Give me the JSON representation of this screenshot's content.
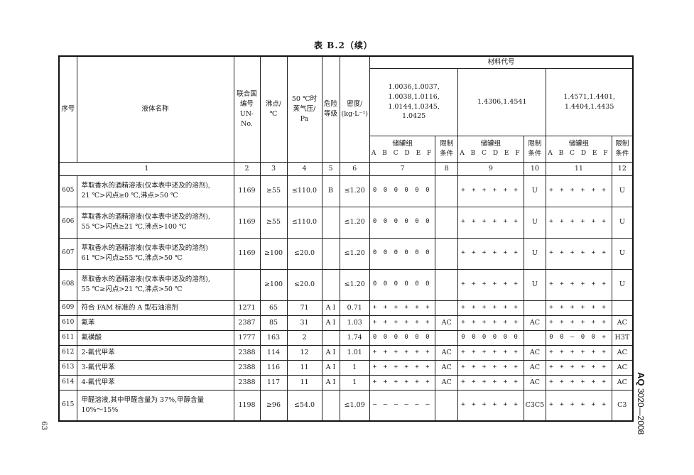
{
  "caption": "表 B.2（续）",
  "header": {
    "seq": "序号",
    "name": "液体名称",
    "un": [
      "联合国",
      "编号",
      "UN-No."
    ],
    "boiling": [
      "沸点/",
      "℃"
    ],
    "vapor": [
      "50 ℃时",
      "蒸气压/",
      "Pa"
    ],
    "hazard": [
      "危险",
      "等级"
    ],
    "density": [
      "密度/",
      "(kg·L⁻¹)"
    ],
    "materials": "材料代号",
    "material_groups": [
      [
        "1.0036,1.0037,",
        "1.0038,1.0116,",
        "1.0144,1.0345,",
        "1.0425"
      ],
      [
        "1.4306,1.4541"
      ],
      [
        "1.4571,1.4401,",
        "1.4404,1.4435"
      ]
    ],
    "tank_group": "储罐组",
    "tank_letters": "A B C D E F",
    "restriction": [
      "限制",
      "条件"
    ],
    "col_numbers": [
      "1",
      "2",
      "3",
      "4",
      "5",
      "6",
      "7",
      "8",
      "9",
      "10",
      "11",
      "12"
    ]
  },
  "rows": [
    {
      "seq": "605",
      "name": [
        "萃取香水的酒精溶液(仅本表中述及的溶剂),",
        "21 ℃>闪点≥0 ℃,沸点>50 ℃"
      ],
      "un": "1169",
      "bp": "≥55",
      "vp": "≤110.0",
      "hz": "B",
      "den": "≤1.20",
      "g1": "0 0 0 0 0 0",
      "r1": "",
      "g2": "+ + + + + +",
      "r2": "U",
      "g3": "+ + + + + +",
      "r3": "U"
    },
    {
      "seq": "606",
      "name": [
        "萃取香水的酒精溶液(仅本表中述及的溶剂),",
        "55 ℃>闪点≥21 ℃,沸点>100 ℃"
      ],
      "un": "1169",
      "bp": "≥55",
      "vp": "≤110.0",
      "hz": "",
      "den": "≤1.20",
      "g1": "0 0 0 0 0 0",
      "r1": "",
      "g2": "+ + + + + +",
      "r2": "U",
      "g3": "+ + + + + +",
      "r3": "U"
    },
    {
      "seq": "607",
      "name": [
        "萃取香水的酒精溶液(仅本表中述及的溶剂)",
        "61 ℃>闪点≥55 ℃,沸点>50 ℃"
      ],
      "un": "1169",
      "bp": "≥100",
      "vp": "≤20.0",
      "hz": "",
      "den": "≤1.20",
      "g1": "0 0 0 0 0 0",
      "r1": "",
      "g2": "+ + + + + +",
      "r2": "U",
      "g3": "+ + + + + +",
      "r3": "U"
    },
    {
      "seq": "608",
      "name": [
        "萃取香水的酒精溶液(仅本表中述及的溶剂),",
        "55 ℃≥闪点>21 ℃,沸点>50 ℃"
      ],
      "un": "",
      "bp": "≥100",
      "vp": "≤20.0",
      "hz": "",
      "den": "≤1.20",
      "g1": "0 0 0 0 0 0",
      "r1": "",
      "g2": "+ + + + + +",
      "r2": "U",
      "g3": "+ + + + + +",
      "r3": "U"
    },
    {
      "seq": "609",
      "name": [
        "符合 FAM 标准的 A 型石油溶剂"
      ],
      "un": "1271",
      "bp": "65",
      "vp": "71",
      "hz": "A Ⅰ",
      "den": "0.71",
      "g1": "+ + + + + +",
      "r1": "",
      "g2": "+ + + + + +",
      "r2": "",
      "g3": "+ + + + + +",
      "r3": ""
    },
    {
      "seq": "610",
      "name": [
        "氟苯"
      ],
      "un": "2387",
      "bp": "85",
      "vp": "31",
      "hz": "A Ⅰ",
      "den": "1.03",
      "g1": "+ + + + + +",
      "r1": "AC",
      "g2": "+ + + + + +",
      "r2": "AC",
      "g3": "+ + + + + +",
      "r3": "AC"
    },
    {
      "seq": "611",
      "name": [
        "氟磺酸"
      ],
      "un": "1777",
      "bp": "163",
      "vp": "2",
      "hz": "",
      "den": "1.74",
      "g1": "0 0 0 0 0 0",
      "r1": "",
      "g2": "0 0 0 0 0 0",
      "r2": "",
      "g3": "0 0 — 0 0 +",
      "r3": "H3T"
    },
    {
      "seq": "612",
      "name": [
        "2-氟代甲苯"
      ],
      "un": "2388",
      "bp": "114",
      "vp": "12",
      "hz": "A Ⅰ",
      "den": "1.01",
      "g1": "+ + + + + +",
      "r1": "AC",
      "g2": "+ + + + + +",
      "r2": "AC",
      "g3": "+ + + + + +",
      "r3": "AC"
    },
    {
      "seq": "613",
      "name": [
        "3-氟代甲苯"
      ],
      "un": "2388",
      "bp": "116",
      "vp": "11",
      "hz": "A Ⅰ",
      "den": "1",
      "g1": "+ + + + + +",
      "r1": "AC",
      "g2": "+ + + + + +",
      "r2": "AC",
      "g3": "+ + + + + +",
      "r3": "AC"
    },
    {
      "seq": "614",
      "name": [
        "4-氟代甲苯"
      ],
      "un": "2388",
      "bp": "117",
      "vp": "11",
      "hz": "A Ⅰ",
      "den": "1",
      "g1": "+ + + + + +",
      "r1": "AC",
      "g2": "+ + + + + +",
      "r2": "AC",
      "g3": "+ + + + + +",
      "r3": "AC"
    },
    {
      "seq": "615",
      "name": [
        "甲醛溶液,其中甲醛含量为 37%,甲醇含量",
        "10%～15%"
      ],
      "un": "1198",
      "bp": "≥96",
      "vp": "≤54.0",
      "hz": "",
      "den": "≤1.09",
      "g1": "— — — — — —",
      "r1": "",
      "g2": "+ + + + + +",
      "r2": "C3C5",
      "g3": "+ + + + + +",
      "r3": "C3"
    }
  ],
  "side_standard": {
    "prefix": "AQ",
    "code": "3020—2008"
  },
  "page_number": "63"
}
